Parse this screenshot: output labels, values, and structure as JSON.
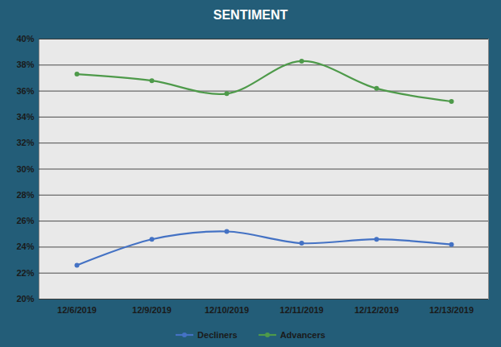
{
  "chart_data": {
    "type": "line",
    "title": "SENTIMENT",
    "categories": [
      "12/6/2019",
      "12/9/2019",
      "12/10/2019",
      "12/11/2019",
      "12/12/2019",
      "12/13/2019"
    ],
    "series": [
      {
        "name": "Decliners",
        "color": "#4472c4",
        "marker": "circle",
        "line_style": "solid",
        "values": [
          22.6,
          24.6,
          25.2,
          24.3,
          24.6,
          24.2
        ]
      },
      {
        "name": "Advancers",
        "color": "#4e9a4a",
        "marker": "circle",
        "line_style": "solid",
        "values": [
          37.3,
          36.8,
          35.8,
          38.3,
          36.2,
          35.2
        ]
      }
    ],
    "ylim": [
      20,
      40
    ],
    "yticks": [
      {
        "value": 20,
        "label": "20%"
      },
      {
        "value": 22,
        "label": "22%"
      },
      {
        "value": 24,
        "label": "24%"
      },
      {
        "value": 26,
        "label": "26%"
      },
      {
        "value": 28,
        "label": "28%"
      },
      {
        "value": 30,
        "label": "30%"
      },
      {
        "value": 32,
        "label": "32%"
      },
      {
        "value": 34,
        "label": "34%"
      },
      {
        "value": 36,
        "label": "36%"
      },
      {
        "value": 38,
        "label": "38%"
      },
      {
        "value": 40,
        "label": "40%"
      }
    ],
    "grid": true,
    "legend": "bottom"
  }
}
